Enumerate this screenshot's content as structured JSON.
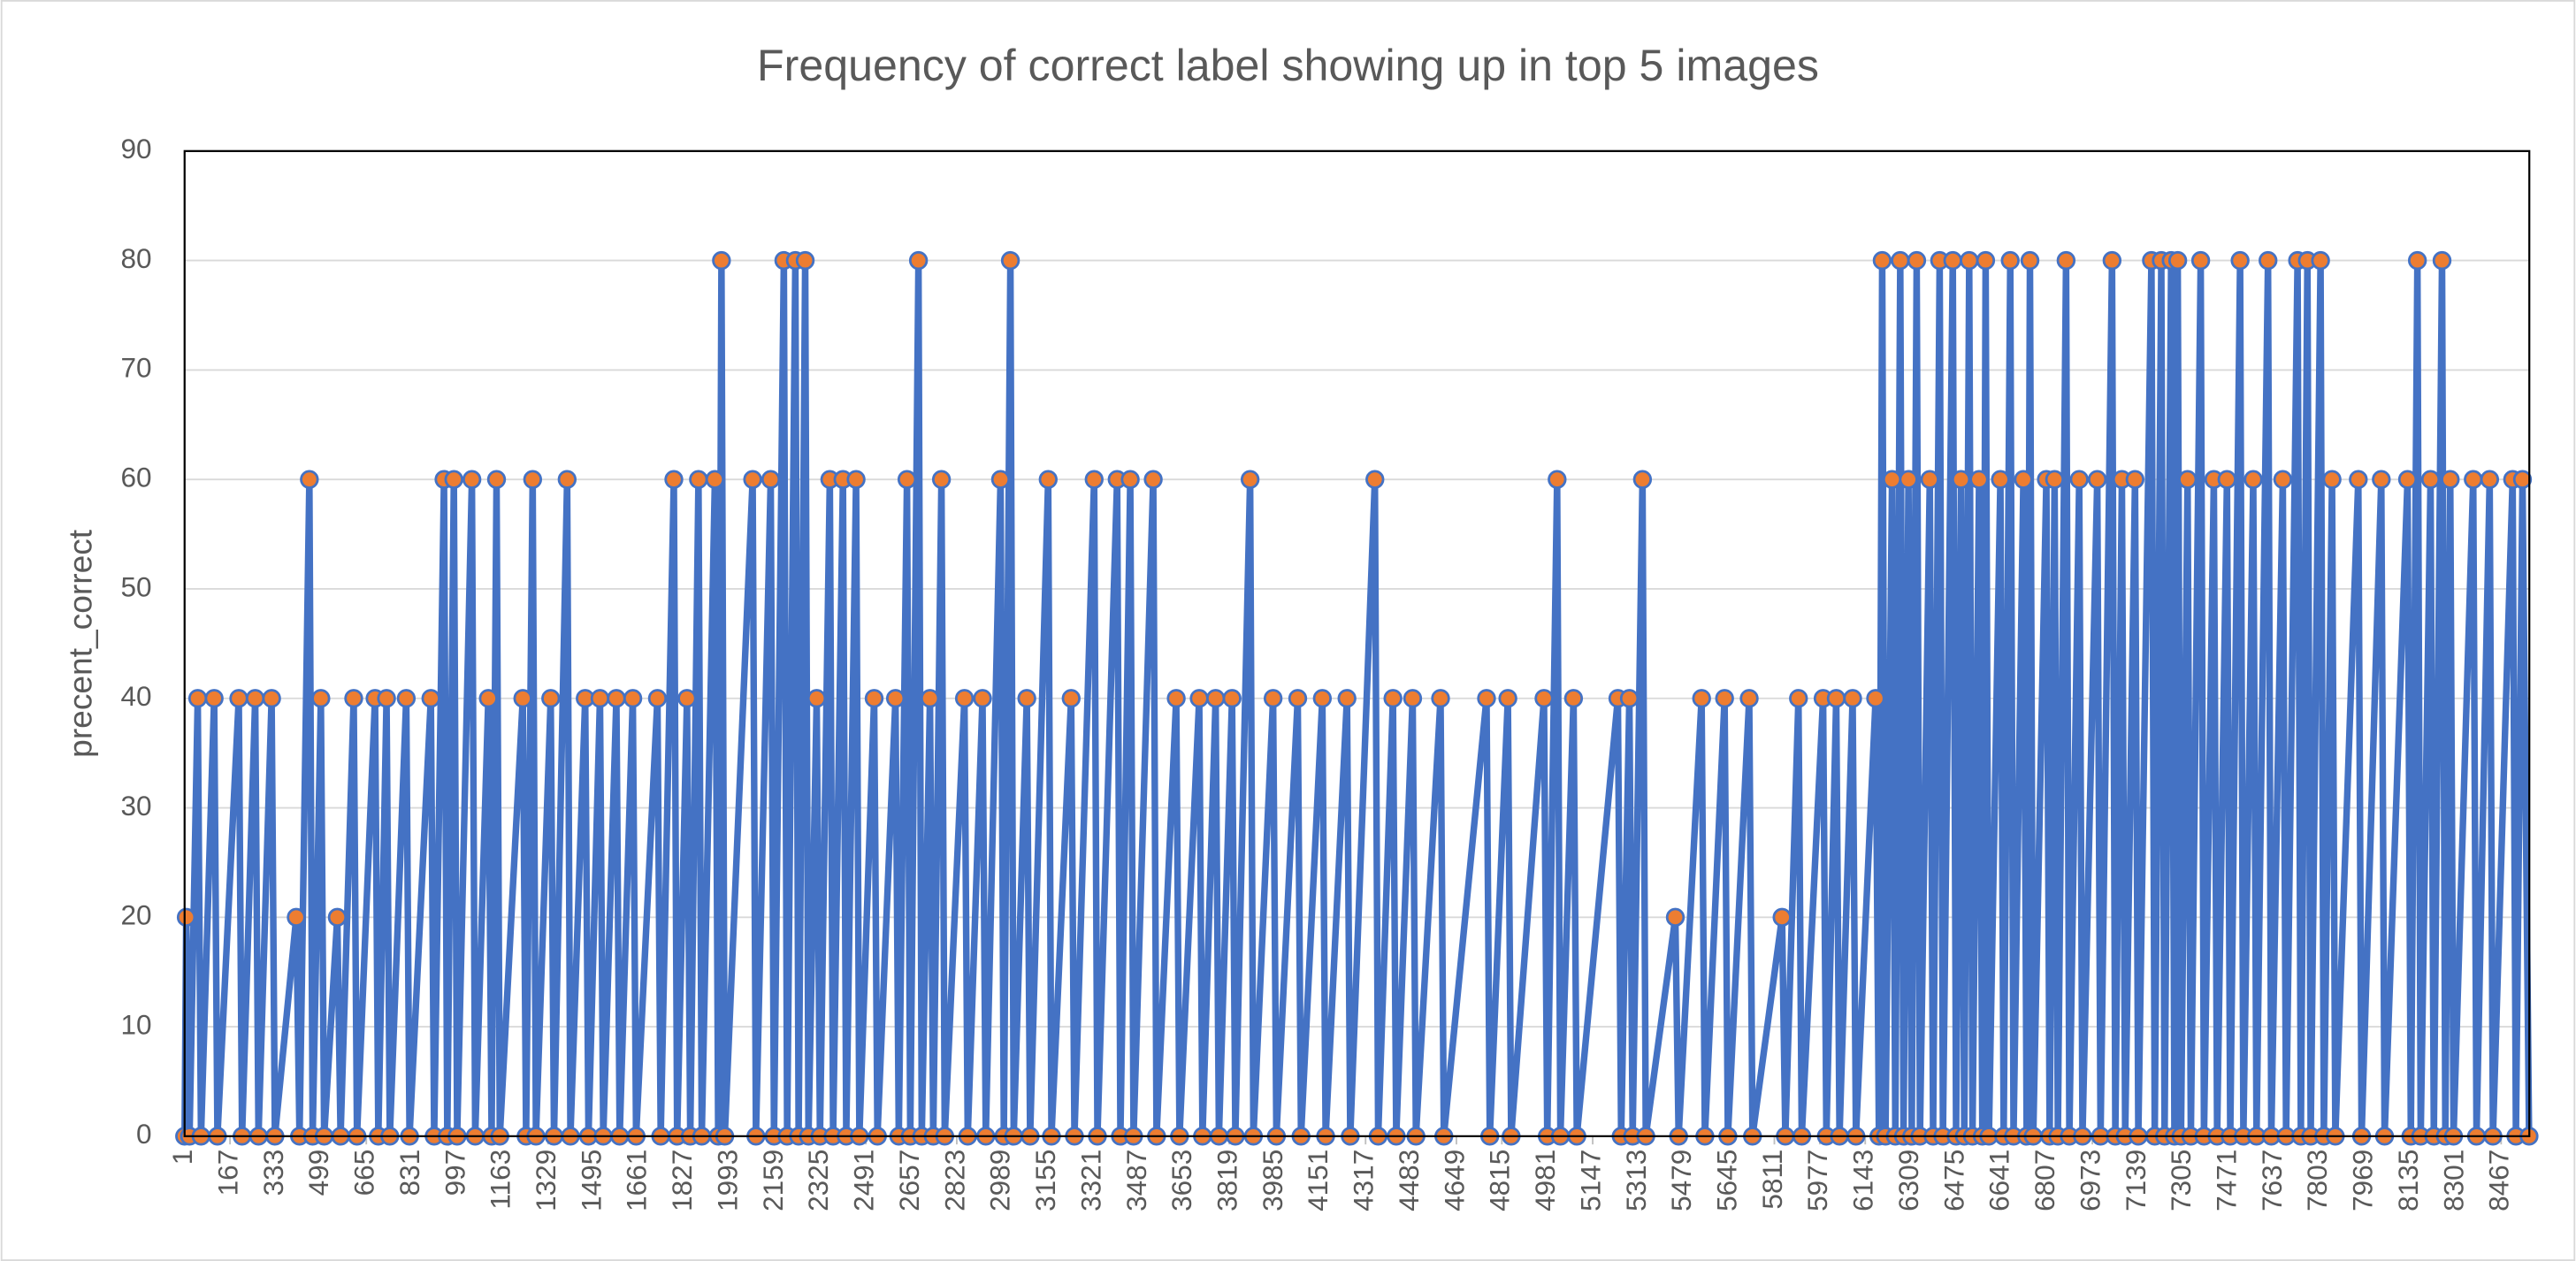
{
  "chart_data": {
    "type": "line",
    "title": "Frequency of correct label showing up in top 5 images",
    "y_label": "precent_correct",
    "color": "#4472c4",
    "marker_color": "#ed7d31",
    "grid": true,
    "xlim": [
      1,
      8570
    ],
    "ylim": [
      0,
      90
    ],
    "yticks": [
      0,
      10,
      20,
      30,
      40,
      50,
      60,
      70,
      80,
      90
    ],
    "xticks": [
      1,
      167,
      333,
      499,
      665,
      831,
      997,
      1163,
      1329,
      1495,
      1661,
      1827,
      1993,
      2159,
      2325,
      2491,
      2657,
      2823,
      2989,
      3155,
      3321,
      3487,
      3653,
      3819,
      3985,
      4151,
      4317,
      4483,
      4649,
      4815,
      4981,
      5147,
      5313,
      5479,
      5645,
      5811,
      5977,
      6143,
      6309,
      6475,
      6641,
      6807,
      6973,
      7139,
      7305,
      7471,
      7637,
      7803,
      7969,
      8135,
      8301,
      8467
    ],
    "x": [
      1,
      7,
      19,
      49,
      61,
      109,
      121,
      199,
      211,
      259,
      271,
      319,
      331,
      409,
      421,
      457,
      469,
      499,
      511,
      559,
      571,
      619,
      631,
      697,
      709,
      739,
      751,
      811,
      823,
      901,
      913,
      949,
      961,
      985,
      997,
      1051,
      1063,
      1111,
      1123,
      1141,
      1153,
      1237,
      1249,
      1273,
      1285,
      1339,
      1351,
      1399,
      1411,
      1465,
      1477,
      1519,
      1531,
      1579,
      1591,
      1639,
      1651,
      1729,
      1741,
      1789,
      1801,
      1837,
      1849,
      1879,
      1891,
      1939,
      1951,
      1963,
      1975,
      2077,
      2089,
      2143,
      2155,
      2191,
      2203,
      2233,
      2245,
      2269,
      2281,
      2311,
      2323,
      2359,
      2371,
      2407,
      2419,
      2455,
      2467,
      2521,
      2533,
      2599,
      2611,
      2641,
      2653,
      2683,
      2695,
      2725,
      2737,
      2767,
      2779,
      2851,
      2863,
      2917,
      2929,
      2983,
      2995,
      3019,
      3031,
      3079,
      3091,
      3157,
      3169,
      3241,
      3253,
      3325,
      3337,
      3409,
      3421,
      3457,
      3469,
      3541,
      3553,
      3625,
      3637,
      3709,
      3721,
      3769,
      3781,
      3829,
      3841,
      3895,
      3907,
      3979,
      3991,
      4069,
      4081,
      4159,
      4171,
      4249,
      4261,
      4351,
      4363,
      4417,
      4429,
      4489,
      4501,
      4591,
      4603,
      4759,
      4771,
      4837,
      4849,
      4969,
      4981,
      5017,
      5029,
      5077,
      5089,
      5239,
      5251,
      5281,
      5293,
      5329,
      5341,
      5449,
      5461,
      5545,
      5557,
      5629,
      5641,
      5719,
      5731,
      5839,
      5851,
      5899,
      5911,
      5989,
      6001,
      6037,
      6049,
      6097,
      6109,
      6181,
      6193,
      6205,
      6217,
      6241,
      6253,
      6271,
      6283,
      6301,
      6313,
      6331,
      6343,
      6379,
      6391,
      6415,
      6427,
      6463,
      6475,
      6493,
      6505,
      6523,
      6535,
      6559,
      6571,
      6583,
      6595,
      6637,
      6649,
      6673,
      6685,
      6721,
      6733,
      6745,
      6757,
      6805,
      6817,
      6835,
      6847,
      6877,
      6889,
      6925,
      6937,
      6991,
      7003,
      7045,
      7057,
      7081,
      7093,
      7129,
      7141,
      7189,
      7201,
      7225,
      7237,
      7261,
      7273,
      7285,
      7297,
      7321,
      7333,
      7369,
      7381,
      7417,
      7429,
      7465,
      7477,
      7513,
      7525,
      7561,
      7573,
      7615,
      7627,
      7669,
      7681,
      7723,
      7735,
      7759,
      7771,
      7807,
      7819,
      7849,
      7861,
      7945,
      7957,
      8029,
      8041,
      8125,
      8137,
      8161,
      8173,
      8209,
      8221,
      8251,
      8263,
      8281,
      8293,
      8365,
      8377,
      8425,
      8437,
      8509,
      8521,
      8545,
      8569
    ],
    "values": [
      0,
      20,
      0,
      40,
      0,
      40,
      0,
      40,
      0,
      40,
      0,
      40,
      0,
      20,
      0,
      60,
      0,
      40,
      0,
      20,
      0,
      40,
      0,
      40,
      0,
      40,
      0,
      40,
      0,
      40,
      0,
      60,
      0,
      60,
      0,
      60,
      0,
      40,
      0,
      60,
      0,
      40,
      0,
      60,
      0,
      40,
      0,
      60,
      0,
      40,
      0,
      40,
      0,
      40,
      0,
      40,
      0,
      40,
      0,
      60,
      0,
      40,
      0,
      60,
      0,
      60,
      0,
      80,
      0,
      60,
      0,
      60,
      0,
      80,
      0,
      80,
      0,
      80,
      0,
      40,
      0,
      60,
      0,
      60,
      0,
      60,
      0,
      40,
      0,
      40,
      0,
      60,
      0,
      80,
      0,
      40,
      0,
      60,
      0,
      40,
      0,
      40,
      0,
      60,
      0,
      80,
      0,
      40,
      0,
      60,
      0,
      40,
      0,
      60,
      0,
      60,
      0,
      60,
      0,
      60,
      0,
      40,
      0,
      40,
      0,
      40,
      0,
      40,
      0,
      60,
      0,
      40,
      0,
      40,
      0,
      40,
      0,
      40,
      0,
      60,
      0,
      40,
      0,
      40,
      0,
      40,
      0,
      40,
      0,
      40,
      0,
      40,
      0,
      60,
      0,
      40,
      0,
      40,
      0,
      40,
      0,
      60,
      0,
      20,
      0,
      40,
      0,
      40,
      0,
      40,
      0,
      20,
      0,
      40,
      0,
      40,
      0,
      40,
      0,
      40,
      0,
      40,
      0,
      80,
      0,
      60,
      0,
      80,
      0,
      60,
      0,
      80,
      0,
      60,
      0,
      80,
      0,
      80,
      0,
      60,
      0,
      80,
      0,
      60,
      0,
      80,
      0,
      60,
      0,
      80,
      0,
      60,
      0,
      80,
      0,
      60,
      0,
      60,
      0,
      80,
      0,
      60,
      0,
      60,
      0,
      80,
      0,
      60,
      0,
      60,
      0,
      80,
      0,
      80,
      0,
      80,
      0,
      80,
      0,
      60,
      0,
      80,
      0,
      60,
      0,
      60,
      0,
      80,
      0,
      60,
      0,
      80,
      0,
      60,
      0,
      80,
      0,
      80,
      0,
      80,
      0,
      60,
      0,
      60,
      0,
      60,
      0,
      60,
      0,
      80,
      0,
      60,
      0,
      80,
      0,
      60,
      0,
      60,
      0,
      60,
      0,
      60,
      0,
      60,
      0
    ]
  }
}
